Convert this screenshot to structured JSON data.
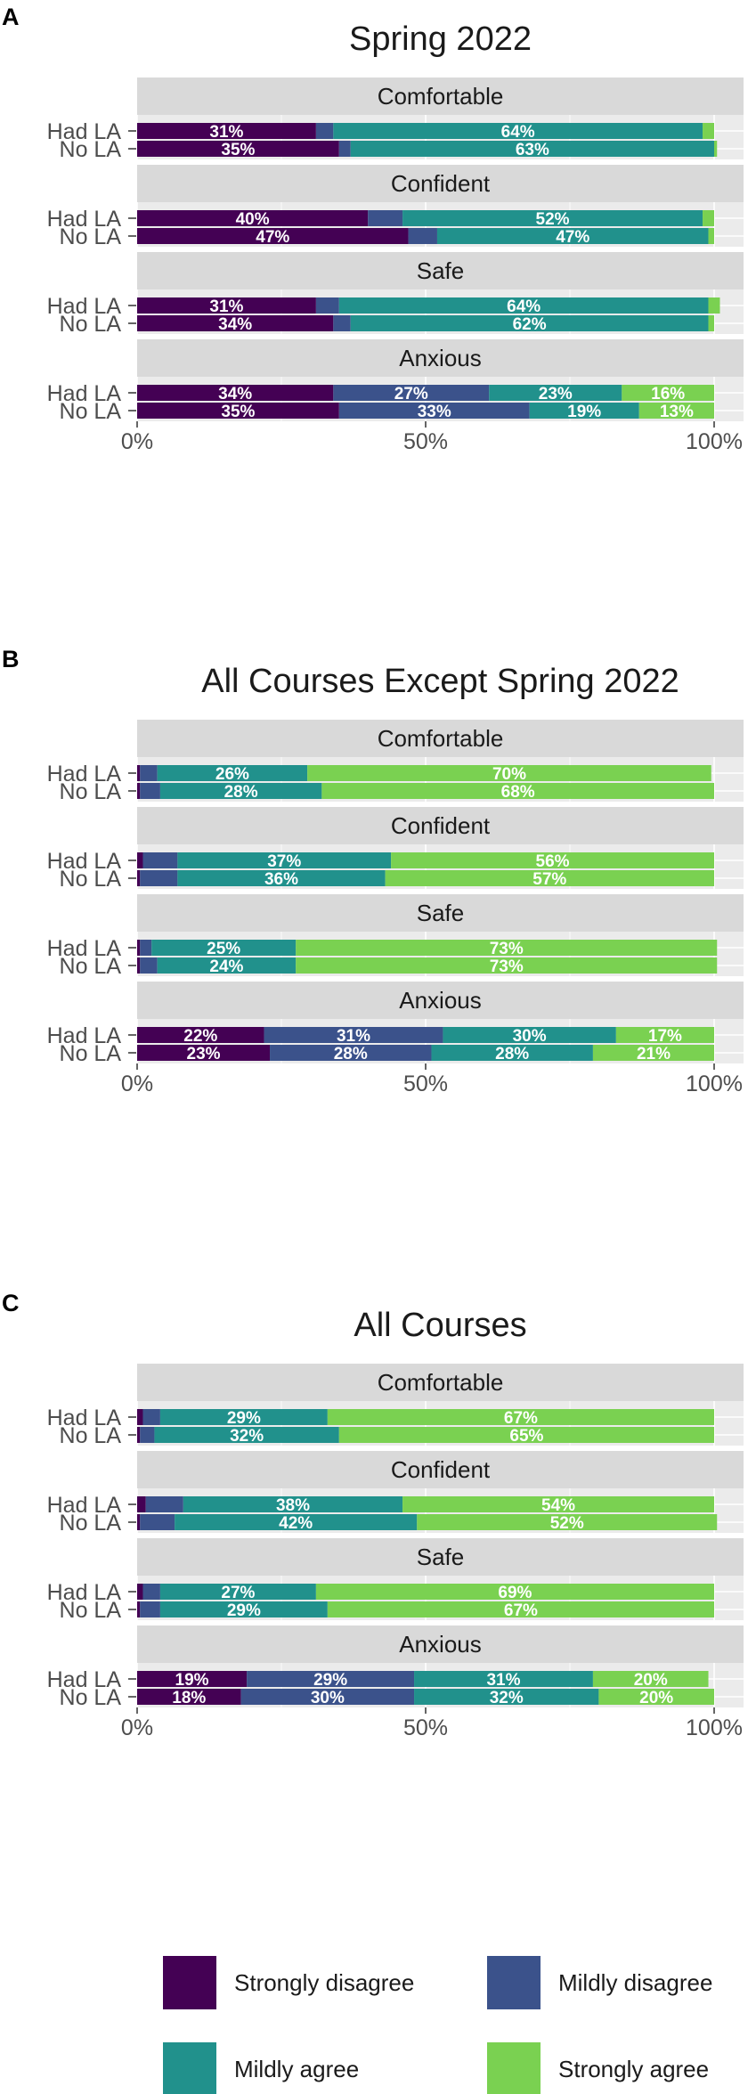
{
  "chart_data": [
    {
      "type": "bar",
      "orientation": "horizontal",
      "stacked": true,
      "panel_letter": "A",
      "title": "Spring 2022",
      "xlim": [
        0,
        100
      ],
      "x_ticks": [
        "0%",
        "50%",
        "100%"
      ],
      "categories": [
        "Had LA",
        "No LA"
      ],
      "facets": [
        {
          "label": "Comfortable",
          "rows": [
            {
              "label": "Had LA",
              "values": [
                31,
                3,
                64,
                2
              ],
              "shown_labels": [
                "31%",
                "",
                "64%",
                ""
              ]
            },
            {
              "label": "No LA",
              "values": [
                35,
                2,
                63,
                0.5
              ],
              "shown_labels": [
                "35%",
                "",
                "63%",
                ""
              ]
            }
          ]
        },
        {
          "label": "Confident",
          "rows": [
            {
              "label": "Had LA",
              "values": [
                40,
                6,
                52,
                2
              ],
              "shown_labels": [
                "40%",
                "",
                "52%",
                ""
              ]
            },
            {
              "label": "No LA",
              "values": [
                47,
                5,
                47,
                1
              ],
              "shown_labels": [
                "47%",
                "",
                "47%",
                ""
              ]
            }
          ]
        },
        {
          "label": "Safe",
          "rows": [
            {
              "label": "Had LA",
              "values": [
                31,
                4,
                64,
                2
              ],
              "shown_labels": [
                "31%",
                "",
                "64%",
                ""
              ]
            },
            {
              "label": "No LA",
              "values": [
                34,
                3,
                62,
                1
              ],
              "shown_labels": [
                "34%",
                "",
                "62%",
                ""
              ]
            }
          ]
        },
        {
          "label": "Anxious",
          "rows": [
            {
              "label": "Had LA",
              "values": [
                34,
                27,
                23,
                16
              ],
              "shown_labels": [
                "34%",
                "27%",
                "23%",
                "16%"
              ]
            },
            {
              "label": "No LA",
              "values": [
                35,
                33,
                19,
                13
              ],
              "shown_labels": [
                "35%",
                "33%",
                "19%",
                "13%"
              ]
            }
          ]
        }
      ]
    },
    {
      "type": "bar",
      "orientation": "horizontal",
      "stacked": true,
      "panel_letter": "B",
      "title": "All Courses Except Spring 2022",
      "xlim": [
        0,
        100
      ],
      "x_ticks": [
        "0%",
        "50%",
        "100%"
      ],
      "categories": [
        "Had LA",
        "No LA"
      ],
      "facets": [
        {
          "label": "Comfortable",
          "rows": [
            {
              "label": "Had LA",
              "values": [
                0.5,
                3,
                26,
                70
              ],
              "shown_labels": [
                "",
                "",
                "26%",
                "70%"
              ]
            },
            {
              "label": "No LA",
              "values": [
                0.5,
                3.5,
                28,
                68
              ],
              "shown_labels": [
                "",
                "",
                "28%",
                "68%"
              ]
            }
          ]
        },
        {
          "label": "Confident",
          "rows": [
            {
              "label": "Had LA",
              "values": [
                1,
                6,
                37,
                56
              ],
              "shown_labels": [
                "",
                "",
                "37%",
                "56%"
              ]
            },
            {
              "label": "No LA",
              "values": [
                0.5,
                6.5,
                36,
                57
              ],
              "shown_labels": [
                "",
                "",
                "36%",
                "57%"
              ]
            }
          ]
        },
        {
          "label": "Safe",
          "rows": [
            {
              "label": "Had LA",
              "values": [
                0.5,
                2,
                25,
                73
              ],
              "shown_labels": [
                "",
                "",
                "25%",
                "73%"
              ]
            },
            {
              "label": "No LA",
              "values": [
                0.5,
                3,
                24,
                73
              ],
              "shown_labels": [
                "",
                "",
                "24%",
                "73%"
              ]
            }
          ]
        },
        {
          "label": "Anxious",
          "rows": [
            {
              "label": "Had LA",
              "values": [
                22,
                31,
                30,
                17
              ],
              "shown_labels": [
                "22%",
                "31%",
                "30%",
                "17%"
              ]
            },
            {
              "label": "No LA",
              "values": [
                23,
                28,
                28,
                21
              ],
              "shown_labels": [
                "23%",
                "28%",
                "28%",
                "21%"
              ]
            }
          ]
        }
      ]
    },
    {
      "type": "bar",
      "orientation": "horizontal",
      "stacked": true,
      "panel_letter": "C",
      "title": "All Courses",
      "xlim": [
        0,
        100
      ],
      "x_ticks": [
        "0%",
        "50%",
        "100%"
      ],
      "categories": [
        "Had LA",
        "No LA"
      ],
      "facets": [
        {
          "label": "Comfortable",
          "rows": [
            {
              "label": "Had LA",
              "values": [
                1,
                3,
                29,
                67
              ],
              "shown_labels": [
                "",
                "",
                "29%",
                "67%"
              ]
            },
            {
              "label": "No LA",
              "values": [
                0.5,
                2.5,
                32,
                65
              ],
              "shown_labels": [
                "",
                "",
                "32%",
                "65%"
              ]
            }
          ]
        },
        {
          "label": "Confident",
          "rows": [
            {
              "label": "Had LA",
              "values": [
                1.5,
                6.5,
                38,
                54
              ],
              "shown_labels": [
                "",
                "",
                "38%",
                "54%"
              ]
            },
            {
              "label": "No LA",
              "values": [
                0.5,
                6,
                42,
                52
              ],
              "shown_labels": [
                "",
                "",
                "42%",
                "52%"
              ]
            }
          ]
        },
        {
          "label": "Safe",
          "rows": [
            {
              "label": "Had LA",
              "values": [
                1,
                3,
                27,
                69
              ],
              "shown_labels": [
                "",
                "",
                "27%",
                "69%"
              ]
            },
            {
              "label": "No LA",
              "values": [
                0.5,
                3.5,
                29,
                67
              ],
              "shown_labels": [
                "",
                "",
                "29%",
                "67%"
              ]
            }
          ]
        },
        {
          "label": "Anxious",
          "rows": [
            {
              "label": "Had LA",
              "values": [
                19,
                29,
                31,
                20
              ],
              "shown_labels": [
                "19%",
                "29%",
                "31%",
                "20%"
              ]
            },
            {
              "label": "No LA",
              "values": [
                18,
                30,
                32,
                20
              ],
              "shown_labels": [
                "18%",
                "30%",
                "32%",
                "20%"
              ]
            }
          ]
        }
      ]
    }
  ],
  "legend": {
    "placement": "bottom",
    "items": [
      {
        "label": "Strongly disagree",
        "color": "#440154"
      },
      {
        "label": "Mildly disagree",
        "color": "#3b528b"
      },
      {
        "label": "Mildly agree",
        "color": "#21918c"
      },
      {
        "label": "Strongly agree",
        "color": "#7ad151"
      }
    ]
  },
  "colors": {
    "strip_background": "#d9d9d9",
    "panel_background": "#ebebeb",
    "gridline": "#ffffff",
    "bar_label": "#ffffff",
    "axis_text": "#4d4d4d",
    "title_text": "#1a1a1a"
  }
}
